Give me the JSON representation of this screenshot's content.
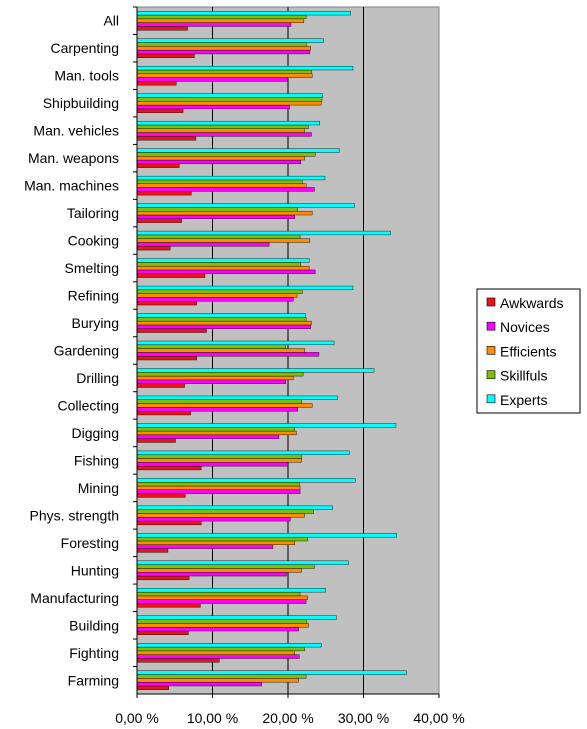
{
  "chart_data": {
    "type": "bar",
    "orientation": "horizontal",
    "categories": [
      "All",
      "Carpenting",
      "Man. tools",
      "Shipbuilding",
      "Man. vehicles",
      "Man. weapons",
      "Man. machines",
      "Tailoring",
      "Cooking",
      "Smelting",
      "Refining",
      "Burying",
      "Gardening",
      "Drilling",
      "Collecting",
      "Digging",
      "Fishing",
      "Mining",
      "Phys. strength",
      "Foresting",
      "Hunting",
      "Manufacturing",
      "Building",
      "Fighting",
      "Farming"
    ],
    "series": [
      {
        "name": "Awkwards",
        "color": "#e8141c",
        "values": [
          6.7,
          7.6,
          5.2,
          6.1,
          7.8,
          5.6,
          7.2,
          5.9,
          4.4,
          9.0,
          7.9,
          9.2,
          7.9,
          6.3,
          7.1,
          5.1,
          8.5,
          6.4,
          8.5,
          4.1,
          6.9,
          8.4,
          6.8,
          10.9,
          4.2
        ]
      },
      {
        "name": "Novices",
        "color": "#ff00ff",
        "values": [
          20.4,
          22.9,
          19.9,
          20.2,
          23.1,
          21.7,
          23.5,
          20.9,
          17.5,
          23.6,
          20.7,
          23.0,
          24.1,
          19.7,
          21.3,
          18.8,
          20.0,
          21.6,
          20.3,
          18.0,
          19.8,
          22.4,
          21.4,
          21.5,
          16.5
        ]
      },
      {
        "name": "Efficients",
        "color": "#ff8c00",
        "values": [
          22.1,
          23.0,
          23.2,
          24.4,
          22.2,
          22.2,
          22.4,
          23.2,
          22.9,
          22.8,
          21.2,
          23.1,
          22.2,
          20.7,
          23.2,
          21.1,
          21.8,
          21.6,
          22.2,
          20.9,
          21.8,
          22.6,
          22.7,
          20.9,
          21.4
        ]
      },
      {
        "name": "Skillfuls",
        "color": "#7fbf00",
        "values": [
          22.4,
          22.5,
          23.1,
          24.5,
          22.7,
          23.6,
          21.9,
          21.3,
          21.6,
          21.7,
          21.9,
          22.4,
          19.7,
          22.0,
          21.8,
          20.9,
          21.8,
          21.5,
          23.4,
          22.6,
          23.5,
          21.6,
          22.5,
          22.2,
          22.4
        ]
      },
      {
        "name": "Experts",
        "color": "#00ffff",
        "values": [
          28.3,
          24.7,
          28.6,
          24.6,
          24.2,
          26.8,
          24.9,
          28.8,
          33.6,
          22.8,
          28.6,
          22.3,
          26.1,
          31.4,
          26.6,
          34.3,
          28.1,
          28.9,
          25.9,
          34.4,
          28.0,
          25.0,
          26.4,
          24.4,
          35.7
        ]
      }
    ],
    "xlim": [
      0,
      40
    ],
    "x_ticks": [
      "0,00 %",
      "10,00 %",
      "20,00 %",
      "30,00 %",
      "40,00 %"
    ],
    "grid": "vertical",
    "legend": "right",
    "plot_background": "#c0c0c0"
  }
}
